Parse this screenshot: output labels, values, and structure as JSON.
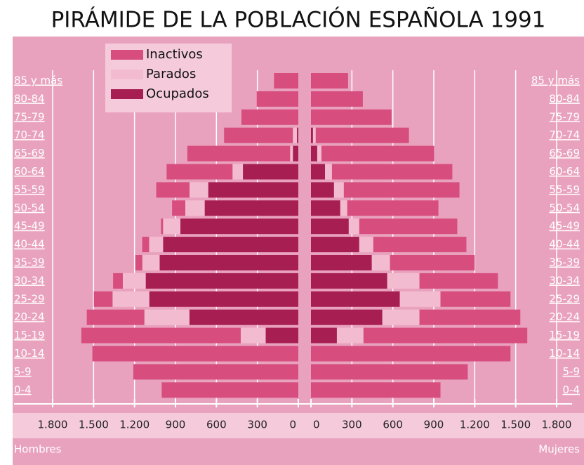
{
  "chart_data": {
    "type": "pyramid",
    "title": "PIRÁMIDE DE LA POBLACIÓN ESPAÑOLA 1991",
    "categories": [
      "85 y más",
      "80-84",
      "75-79",
      "70-74",
      "65-69",
      "60-64",
      "55-59",
      "50-54",
      "45-49",
      "40-44",
      "35-39",
      "30-34",
      "25-29",
      "20-24",
      "15-19",
      "10-14",
      "5-9",
      "0-4"
    ],
    "sides": [
      "Hombres",
      "Mujeres"
    ],
    "series": [
      {
        "name": "Inactivos",
        "color": "#d64d7e",
        "hombres": [
          178,
          305,
          417,
          504,
          753,
          483,
          244,
          97,
          15,
          51,
          51,
          71,
          137,
          422,
          1168,
          1509,
          1209,
          1001
        ],
        "mujeres": [
          272,
          380,
          590,
          683,
          826,
          882,
          847,
          668,
          718,
          682,
          621,
          575,
          513,
          739,
          1200,
          1462,
          1149,
          949
        ]
      },
      {
        "name": "Parados",
        "color": "#f3bbd0",
        "hombres": [
          0,
          0,
          0,
          30,
          20,
          76,
          137,
          142,
          127,
          102,
          127,
          168,
          269,
          330,
          183,
          0,
          0,
          0
        ],
        "mujeres": [
          0,
          0,
          0,
          20,
          31,
          51,
          72,
          51,
          77,
          103,
          133,
          236,
          298,
          272,
          195,
          0,
          0,
          0
        ]
      },
      {
        "name": "Ocupados",
        "color": "#a61e52",
        "hombres": [
          0,
          0,
          0,
          10,
          40,
          406,
          660,
          686,
          864,
          991,
          1016,
          1118,
          1092,
          798,
          239,
          0,
          0,
          0
        ],
        "mujeres": [
          0,
          0,
          0,
          15,
          46,
          103,
          169,
          215,
          277,
          354,
          446,
          559,
          651,
          523,
          190,
          0,
          0,
          0
        ]
      }
    ],
    "xlim": [
      0,
      1800
    ],
    "xticks": [
      0,
      300,
      600,
      900,
      {
        "value": 1200,
        "label": "1.200"
      },
      {
        "value": 1500,
        "label": "1.500"
      },
      {
        "value": 1800,
        "label": "1.800"
      }
    ],
    "grid": true
  }
}
